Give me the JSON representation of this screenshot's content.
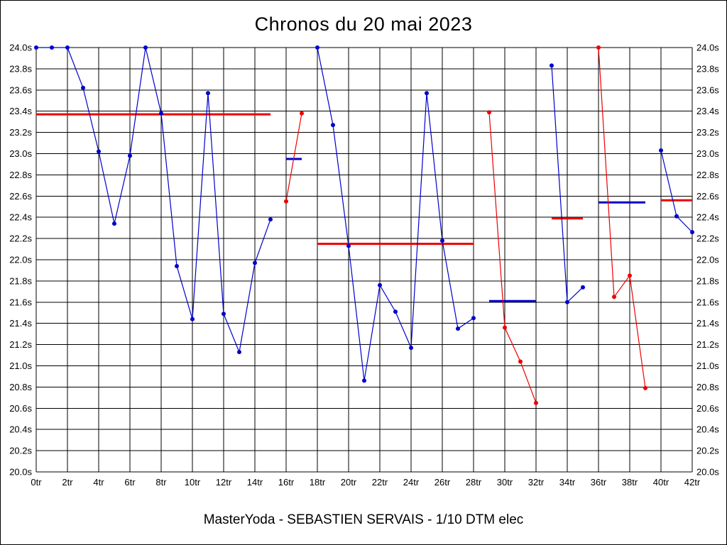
{
  "page": {
    "title": "Chronos du 20 mai 2023",
    "footer": "MasterYoda - SEBASTIEN SERVAIS - 1/10 DTM elec"
  },
  "colors": {
    "blue": "#0000cd",
    "red": "#ee0000",
    "grid": "#000000",
    "text": "#000000",
    "background": "#ffffff"
  },
  "chart_data": {
    "type": "line",
    "title": "Chronos du 20 mai 2023",
    "xlabel": "",
    "ylabel": "",
    "x_unit": "tr",
    "y_unit": "s",
    "xlim": [
      0,
      42
    ],
    "ylim": [
      20.0,
      24.0
    ],
    "grid": true,
    "x_ticks": {
      "values": [
        0,
        2,
        4,
        6,
        8,
        10,
        12,
        14,
        16,
        18,
        20,
        22,
        24,
        26,
        28,
        30,
        32,
        34,
        36,
        38,
        40,
        42
      ],
      "labels": [
        "0tr",
        "2tr",
        "4tr",
        "6tr",
        "8tr",
        "10tr",
        "12tr",
        "14tr",
        "16tr",
        "18tr",
        "20tr",
        "22tr",
        "24tr",
        "26tr",
        "28tr",
        "30tr",
        "32tr",
        "34tr",
        "36tr",
        "38tr",
        "40tr",
        "42tr"
      ]
    },
    "y_ticks": {
      "values": [
        24.0,
        23.8,
        23.6,
        23.4,
        23.2,
        23.0,
        22.8,
        22.6,
        22.4,
        22.2,
        22.0,
        21.8,
        21.6,
        21.4,
        21.2,
        21.0,
        20.8,
        20.6,
        20.4,
        20.2,
        20.0
      ],
      "labels_left": [
        "24.0s",
        "23.8s",
        "23.6s",
        "23.4s",
        "23.2s",
        "23.0s",
        "22.8s",
        "22.6s",
        "22.4s",
        "22.2s",
        "22.0s",
        "21.8s",
        "21.6s",
        "21.4s",
        "21.2s",
        "21.0s",
        "20.8s",
        "20.6s",
        "20.4s",
        "20.2s",
        "20.0s"
      ],
      "labels_right": [
        "24.0s",
        "23.8s",
        "23.6s",
        "23.4s",
        "23.2s",
        "23.0s",
        "22.8s",
        "22.6s",
        "22.4s",
        "22.2s",
        "22.0s",
        "21.8s",
        "21.6s",
        "21.4s",
        "21.2s",
        "21.0s",
        "20.8s",
        "20.6s",
        "20.4s",
        "20.2s",
        "20.0s"
      ]
    },
    "series_segments": [
      {
        "name": "stint-laps-0-15",
        "color": "blue",
        "points": [
          [
            0,
            24.0
          ],
          [
            1,
            24.0
          ],
          [
            2,
            24.0
          ],
          [
            3,
            23.62
          ],
          [
            4,
            23.02
          ],
          [
            5,
            22.34
          ],
          [
            6,
            22.98
          ],
          [
            7,
            24.0
          ],
          [
            8,
            23.38
          ],
          [
            9,
            21.94
          ],
          [
            10,
            21.44
          ],
          [
            11,
            23.57
          ],
          [
            12,
            21.49
          ],
          [
            13,
            21.13
          ],
          [
            14,
            21.97
          ],
          [
            15,
            22.38
          ]
        ]
      },
      {
        "name": "stint-laps-16-17",
        "color": "red",
        "points": [
          [
            16,
            22.55
          ],
          [
            17,
            23.38
          ]
        ]
      },
      {
        "name": "stint-laps-18-28",
        "color": "blue",
        "points": [
          [
            18,
            24.0
          ],
          [
            19,
            23.27
          ],
          [
            20,
            22.13
          ],
          [
            21,
            20.86
          ],
          [
            22,
            21.76
          ],
          [
            23,
            21.51
          ],
          [
            24,
            21.17
          ],
          [
            25,
            23.57
          ],
          [
            26,
            22.18
          ],
          [
            27,
            21.35
          ],
          [
            28,
            21.45
          ]
        ]
      },
      {
        "name": "stint-laps-29-32",
        "color": "red",
        "points": [
          [
            29,
            23.39
          ],
          [
            30,
            21.36
          ],
          [
            31,
            21.04
          ],
          [
            32,
            20.65
          ]
        ]
      },
      {
        "name": "stint-laps-33-35",
        "color": "blue",
        "points": [
          [
            33,
            23.83
          ],
          [
            34,
            21.6
          ],
          [
            35,
            21.74
          ]
        ]
      },
      {
        "name": "stint-laps-36-39",
        "color": "red",
        "points": [
          [
            36,
            24.0
          ],
          [
            37,
            21.65
          ],
          [
            38,
            21.85
          ],
          [
            39,
            20.79
          ]
        ]
      },
      {
        "name": "stint-laps-40-42",
        "color": "blue",
        "points": [
          [
            40,
            23.03
          ],
          [
            41,
            22.41
          ],
          [
            42,
            22.26
          ]
        ]
      }
    ],
    "average_lines": [
      {
        "color": "red",
        "x_start": 0,
        "x_end": 15,
        "value": 23.37
      },
      {
        "color": "blue",
        "x_start": 16,
        "x_end": 17,
        "value": 22.95
      },
      {
        "color": "red",
        "x_start": 18,
        "x_end": 28,
        "value": 22.15
      },
      {
        "color": "blue",
        "x_start": 29,
        "x_end": 32,
        "value": 21.61
      },
      {
        "color": "red",
        "x_start": 33,
        "x_end": 35,
        "value": 22.39
      },
      {
        "color": "blue",
        "x_start": 36,
        "x_end": 39,
        "value": 22.54
      },
      {
        "color": "red",
        "x_start": 40,
        "x_end": 42,
        "value": 22.56
      }
    ]
  }
}
